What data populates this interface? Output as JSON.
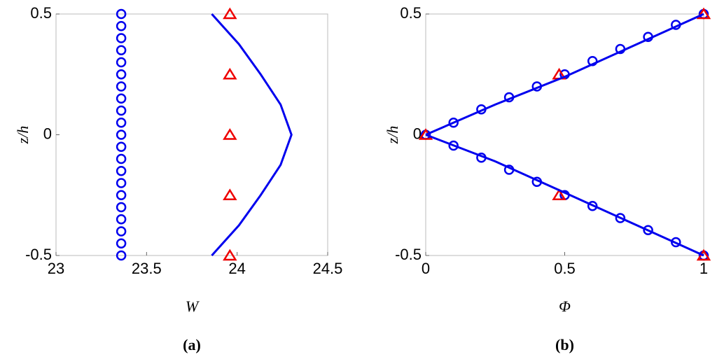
{
  "chart_data": [
    {
      "type": "line",
      "xlabel": "W",
      "ylabel": "z/h",
      "caption": "(a)",
      "xlim": [
        23,
        24.5
      ],
      "ylim": [
        -0.5,
        0.5
      ],
      "xticks": [
        23,
        23.5,
        24,
        24.5
      ],
      "yticks": [
        -0.5,
        0,
        0.5
      ],
      "series": [
        {
          "mode": "markers",
          "marker": "circle",
          "color": "#0000ee",
          "x": [
            23.36,
            23.36,
            23.36,
            23.36,
            23.36,
            23.36,
            23.36,
            23.36,
            23.36,
            23.36,
            23.36,
            23.36,
            23.36,
            23.36,
            23.36,
            23.36,
            23.36,
            23.36,
            23.36,
            23.36,
            23.36
          ],
          "values": [
            -0.5,
            -0.45,
            -0.4,
            -0.35,
            -0.3,
            -0.25,
            -0.2,
            -0.15,
            -0.1,
            -0.05,
            0,
            0.05,
            0.1,
            0.15,
            0.2,
            0.25,
            0.3,
            0.35,
            0.4,
            0.45,
            0.5
          ]
        },
        {
          "mode": "markers",
          "marker": "triangle",
          "color": "#ee0000",
          "x": [
            23.96,
            23.96,
            23.96,
            23.96,
            23.96
          ],
          "values": [
            -0.5,
            -0.25,
            0,
            0.25,
            0.5
          ]
        },
        {
          "mode": "line",
          "color": "#0000ee",
          "x": [
            23.86,
            24.01,
            24.13,
            24.24,
            24.3,
            24.24,
            24.13,
            24.01,
            23.86
          ],
          "values": [
            -0.5,
            -0.375,
            -0.25,
            -0.125,
            0,
            0.125,
            0.25,
            0.375,
            0.5
          ]
        }
      ]
    },
    {
      "type": "line",
      "xlabel": "Φ",
      "ylabel": "z/h",
      "caption": "(b)",
      "xlim": [
        0,
        1
      ],
      "ylim": [
        -0.5,
        0.5
      ],
      "xticks": [
        0,
        0.5,
        1
      ],
      "yticks": [
        -0.5,
        0,
        0.5
      ],
      "series": [
        {
          "mode": "markers",
          "marker": "circle",
          "color": "#0000ee",
          "x": [
            0,
            0.1,
            0.2,
            0.3,
            0.4,
            0.5,
            0.6,
            0.7,
            0.8,
            0.9,
            1,
            0.1,
            0.2,
            0.3,
            0.4,
            0.5,
            0.6,
            0.7,
            0.8,
            0.9,
            1
          ],
          "values": [
            0,
            0.05,
            0.105,
            0.155,
            0.2,
            0.25,
            0.305,
            0.355,
            0.405,
            0.455,
            0.5,
            -0.045,
            -0.095,
            -0.145,
            -0.195,
            -0.25,
            -0.295,
            -0.345,
            -0.395,
            -0.445,
            -0.5
          ]
        },
        {
          "mode": "markers",
          "marker": "triangle",
          "color": "#ee0000",
          "x": [
            0,
            0.48,
            0.48,
            1,
            1
          ],
          "values": [
            0,
            0.25,
            -0.25,
            0.5,
            -0.5
          ]
        },
        {
          "mode": "line",
          "color": "#0000ee",
          "x": [
            0,
            0.25,
            0.5,
            0.75,
            1
          ],
          "values": [
            0,
            0.125,
            0.24,
            0.37,
            0.5
          ]
        },
        {
          "mode": "line",
          "color": "#0000ee",
          "x": [
            0,
            0.25,
            0.5,
            0.75,
            1
          ],
          "values": [
            0,
            -0.11,
            -0.24,
            -0.37,
            -0.5
          ]
        }
      ]
    }
  ]
}
